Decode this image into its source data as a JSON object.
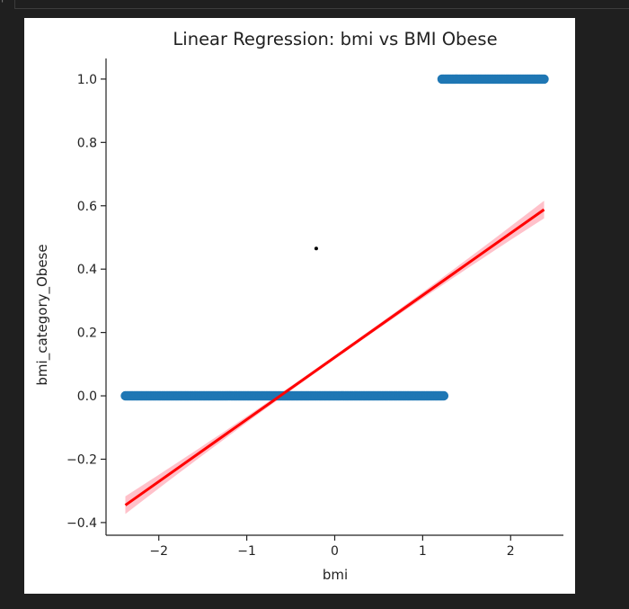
{
  "notebook": {
    "prompt_glyph": "¦"
  },
  "chart_data": {
    "type": "scatter",
    "title": "Linear Regression: bmi vs BMI Obese",
    "xlabel": "bmi",
    "ylabel": "bmi_category_Obese",
    "xlim": [
      -2.6,
      2.6
    ],
    "ylim": [
      -0.44,
      1.065
    ],
    "xticks": [
      -2,
      -1,
      0,
      1,
      2
    ],
    "yticks": [
      -0.4,
      -0.2,
      0.0,
      0.2,
      0.4,
      0.6,
      0.8,
      1.0
    ],
    "xtick_labels": [
      "−2",
      "−1",
      "0",
      "1",
      "2"
    ],
    "ytick_labels": [
      "−0.4",
      "−0.2",
      "0.0",
      "0.2",
      "0.4",
      "0.6",
      "0.8",
      "1.0"
    ],
    "grid": false,
    "series": [
      {
        "type": "scatter",
        "color": "#1f77b4",
        "clusters": [
          {
            "y": 0,
            "x_min": -2.38,
            "x_max": 1.24
          },
          {
            "y": 1,
            "x_min": 1.22,
            "x_max": 2.38
          }
        ]
      },
      {
        "type": "line",
        "color": "#ff0000",
        "x": [
          -2.38,
          2.38
        ],
        "y": [
          -0.345,
          0.588
        ],
        "ci_color": "#ffb6c1",
        "ci_halfwidth_edges": 0.028,
        "ci_halfwidth_center": 0.006
      }
    ],
    "stray_points": [
      {
        "x": -0.21,
        "y": 0.465,
        "color": "#000000"
      }
    ]
  }
}
